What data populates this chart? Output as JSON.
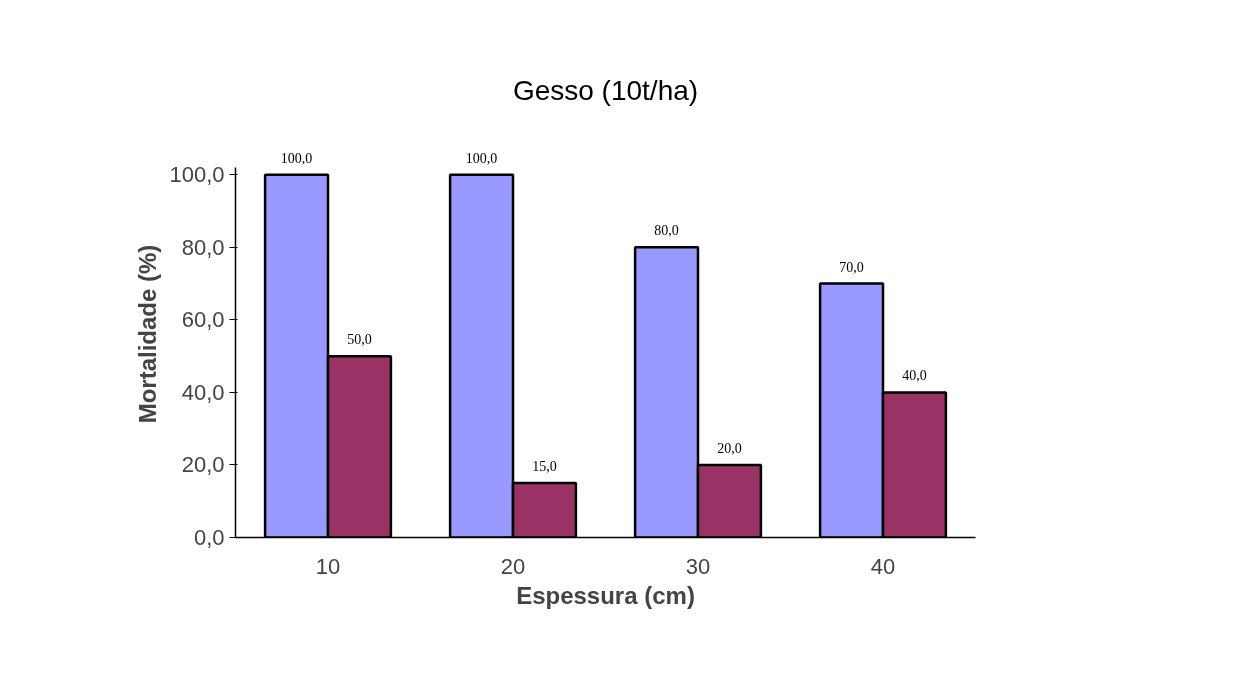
{
  "chart_data": {
    "type": "bar",
    "title": "Gesso (10t/ha)",
    "xlabel": "Espessura (cm)",
    "ylabel": "Mortalidade (%)",
    "categories": [
      "10",
      "20",
      "30",
      "40"
    ],
    "series": [
      {
        "color": "#9999ff",
        "values": [
          100,
          100,
          80,
          70
        ],
        "value_labels": [
          "100,0",
          "100,0",
          "80,0",
          "70,0"
        ]
      },
      {
        "color": "#993366",
        "values": [
          50,
          15,
          20,
          40
        ],
        "value_labels": [
          "50,0",
          "15,0",
          "20,0",
          "40,0"
        ]
      }
    ],
    "ylim": [
      0,
      102
    ],
    "yticks": [
      {
        "value": 0,
        "label": "0,0"
      },
      {
        "value": 20,
        "label": "20,0"
      },
      {
        "value": 40,
        "label": "40,0"
      },
      {
        "value": 60,
        "label": "60,0"
      },
      {
        "value": 80,
        "label": "80,0"
      },
      {
        "value": 100,
        "label": "100,0"
      }
    ],
    "grid": false
  }
}
